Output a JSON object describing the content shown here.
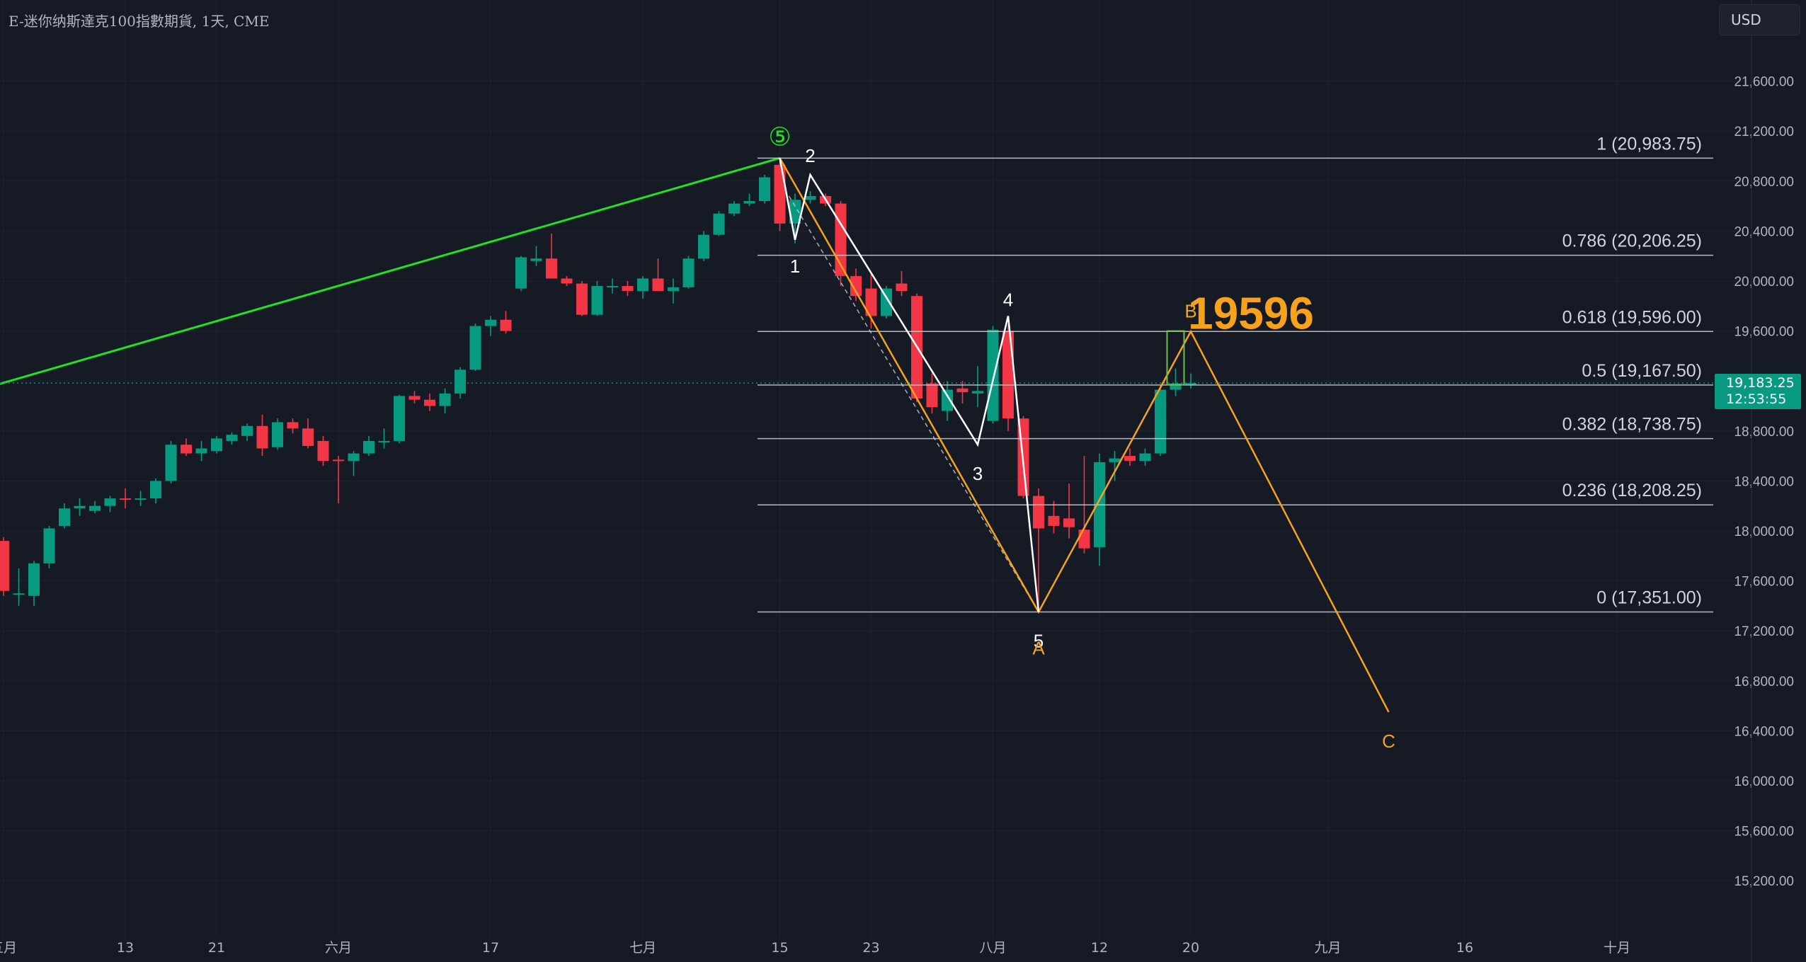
{
  "header": {
    "title": "E-迷你纳斯達克100指數期貨, 1天, CME",
    "currency_button": "USD"
  },
  "price_tag": {
    "price": "19,183.25",
    "countdown": "12:53:55"
  },
  "colors": {
    "background": "#161a25",
    "grid": "#1f2330",
    "up": "#089981",
    "down": "#f23645",
    "trendline": "#22e022",
    "abc_line": "#f7a21b",
    "impulse_line": "#ffffff",
    "fib_line": "#d1d4dc",
    "axis_text": "#b2b5be"
  },
  "chart_data": {
    "type": "candlestick",
    "title": "E-迷你纳斯達克100指數期貨, 1天, CME",
    "ylim": [
      14800,
      22400
    ],
    "y_ticks": [
      "15,200.00",
      "15,600.00",
      "16,000.00",
      "16,400.00",
      "16,800.00",
      "17,200.00",
      "17,600.00",
      "18,000.00",
      "18,400.00",
      "18,800.00",
      "19,200.00",
      "19,600.00",
      "20,000.00",
      "20,400.00",
      "20,800.00",
      "21,200.00",
      "21,600.00"
    ],
    "x_ticks": [
      {
        "label": "五月",
        "bar": 0
      },
      {
        "label": "13",
        "bar": 8
      },
      {
        "label": "21",
        "bar": 14
      },
      {
        "label": "六月",
        "bar": 22
      },
      {
        "label": "17",
        "bar": 32
      },
      {
        "label": "七月",
        "bar": 42
      },
      {
        "label": "15",
        "bar": 51
      },
      {
        "label": "23",
        "bar": 57
      },
      {
        "label": "八月",
        "bar": 65
      },
      {
        "label": "12",
        "bar": 72
      },
      {
        "label": "20",
        "bar": 78
      },
      {
        "label": "九月",
        "bar": 87
      },
      {
        "label": "16",
        "bar": 96
      },
      {
        "label": "十月",
        "bar": 106
      }
    ],
    "candles": [
      {
        "o": 17920,
        "h": 17950,
        "l": 17480,
        "c": 17520
      },
      {
        "o": 17500,
        "h": 17700,
        "l": 17400,
        "c": 17500
      },
      {
        "o": 17480,
        "h": 17760,
        "l": 17400,
        "c": 17740
      },
      {
        "o": 17740,
        "h": 18040,
        "l": 17700,
        "c": 18020
      },
      {
        "o": 18040,
        "h": 18220,
        "l": 18020,
        "c": 18180
      },
      {
        "o": 18180,
        "h": 18260,
        "l": 18120,
        "c": 18200
      },
      {
        "o": 18160,
        "h": 18240,
        "l": 18140,
        "c": 18200
      },
      {
        "o": 18200,
        "h": 18280,
        "l": 18150,
        "c": 18260
      },
      {
        "o": 18260,
        "h": 18340,
        "l": 18180,
        "c": 18250
      },
      {
        "o": 18250,
        "h": 18320,
        "l": 18200,
        "c": 18260
      },
      {
        "o": 18260,
        "h": 18420,
        "l": 18220,
        "c": 18400
      },
      {
        "o": 18400,
        "h": 18720,
        "l": 18380,
        "c": 18690
      },
      {
        "o": 18690,
        "h": 18740,
        "l": 18600,
        "c": 18620
      },
      {
        "o": 18620,
        "h": 18720,
        "l": 18560,
        "c": 18660
      },
      {
        "o": 18640,
        "h": 18760,
        "l": 18620,
        "c": 18740
      },
      {
        "o": 18720,
        "h": 18790,
        "l": 18690,
        "c": 18770
      },
      {
        "o": 18760,
        "h": 18860,
        "l": 18720,
        "c": 18840
      },
      {
        "o": 18840,
        "h": 18930,
        "l": 18600,
        "c": 18660
      },
      {
        "o": 18670,
        "h": 18900,
        "l": 18650,
        "c": 18870
      },
      {
        "o": 18870,
        "h": 18900,
        "l": 18780,
        "c": 18820
      },
      {
        "o": 18820,
        "h": 18900,
        "l": 18660,
        "c": 18680
      },
      {
        "o": 18720,
        "h": 18760,
        "l": 18520,
        "c": 18560
      },
      {
        "o": 18570,
        "h": 18600,
        "l": 18220,
        "c": 18560
      },
      {
        "o": 18560,
        "h": 18640,
        "l": 18440,
        "c": 18620
      },
      {
        "o": 18620,
        "h": 18760,
        "l": 18600,
        "c": 18720
      },
      {
        "o": 18720,
        "h": 18820,
        "l": 18660,
        "c": 18720
      },
      {
        "o": 18720,
        "h": 19090,
        "l": 18700,
        "c": 19080
      },
      {
        "o": 19080,
        "h": 19120,
        "l": 19020,
        "c": 19050
      },
      {
        "o": 19050,
        "h": 19100,
        "l": 18960,
        "c": 19000
      },
      {
        "o": 19000,
        "h": 19140,
        "l": 18940,
        "c": 19100
      },
      {
        "o": 19100,
        "h": 19310,
        "l": 19060,
        "c": 19290
      },
      {
        "o": 19290,
        "h": 19660,
        "l": 19280,
        "c": 19640
      },
      {
        "o": 19640,
        "h": 19720,
        "l": 19560,
        "c": 19690
      },
      {
        "o": 19690,
        "h": 19760,
        "l": 19580,
        "c": 19600
      },
      {
        "o": 19940,
        "h": 20200,
        "l": 19920,
        "c": 20190
      },
      {
        "o": 20160,
        "h": 20280,
        "l": 20120,
        "c": 20180
      },
      {
        "o": 20180,
        "h": 20380,
        "l": 20040,
        "c": 20020
      },
      {
        "o": 20020,
        "h": 20040,
        "l": 19960,
        "c": 19980
      },
      {
        "o": 19980,
        "h": 20000,
        "l": 19720,
        "c": 19730
      },
      {
        "o": 19730,
        "h": 20000,
        "l": 19720,
        "c": 19960
      },
      {
        "o": 19960,
        "h": 20020,
        "l": 19900,
        "c": 19960
      },
      {
        "o": 19960,
        "h": 20000,
        "l": 19880,
        "c": 19920
      },
      {
        "o": 19920,
        "h": 20040,
        "l": 19860,
        "c": 20020
      },
      {
        "o": 20020,
        "h": 20180,
        "l": 19940,
        "c": 19920
      },
      {
        "o": 19920,
        "h": 20020,
        "l": 19820,
        "c": 19950
      },
      {
        "o": 19950,
        "h": 20200,
        "l": 19940,
        "c": 20180
      },
      {
        "o": 20180,
        "h": 20400,
        "l": 20160,
        "c": 20370
      },
      {
        "o": 20370,
        "h": 20560,
        "l": 20360,
        "c": 20540
      },
      {
        "o": 20540,
        "h": 20640,
        "l": 20520,
        "c": 20620
      },
      {
        "o": 20620,
        "h": 20700,
        "l": 20600,
        "c": 20640
      },
      {
        "o": 20640,
        "h": 20850,
        "l": 20620,
        "c": 20830
      },
      {
        "o": 20930,
        "h": 20990,
        "l": 20400,
        "c": 20460
      },
      {
        "o": 20460,
        "h": 20700,
        "l": 20300,
        "c": 20650
      },
      {
        "o": 20650,
        "h": 20720,
        "l": 20620,
        "c": 20680
      },
      {
        "o": 20680,
        "h": 20700,
        "l": 20600,
        "c": 20620
      },
      {
        "o": 20620,
        "h": 20640,
        "l": 19960,
        "c": 20040
      },
      {
        "o": 20040,
        "h": 20100,
        "l": 19840,
        "c": 19880
      },
      {
        "o": 19940,
        "h": 20060,
        "l": 19620,
        "c": 19720
      },
      {
        "o": 19720,
        "h": 19960,
        "l": 19700,
        "c": 19940
      },
      {
        "o": 19980,
        "h": 20080,
        "l": 19880,
        "c": 19920
      },
      {
        "o": 19880,
        "h": 19900,
        "l": 19030,
        "c": 19060
      },
      {
        "o": 19180,
        "h": 19260,
        "l": 18940,
        "c": 18990
      },
      {
        "o": 18960,
        "h": 19200,
        "l": 18880,
        "c": 19130
      },
      {
        "o": 19140,
        "h": 19200,
        "l": 19020,
        "c": 19110
      },
      {
        "o": 19100,
        "h": 19320,
        "l": 18990,
        "c": 19120
      },
      {
        "o": 18880,
        "h": 19640,
        "l": 18860,
        "c": 19610
      },
      {
        "o": 19600,
        "h": 19650,
        "l": 18800,
        "c": 18900
      },
      {
        "o": 18900,
        "h": 18920,
        "l": 18260,
        "c": 18280
      },
      {
        "o": 18280,
        "h": 18340,
        "l": 17380,
        "c": 18020
      },
      {
        "o": 18120,
        "h": 18240,
        "l": 17980,
        "c": 18040
      },
      {
        "o": 18100,
        "h": 18380,
        "l": 17940,
        "c": 18030
      },
      {
        "o": 18010,
        "h": 18600,
        "l": 17820,
        "c": 17860
      },
      {
        "o": 17870,
        "h": 18620,
        "l": 17720,
        "c": 18550
      },
      {
        "o": 18550,
        "h": 18640,
        "l": 18400,
        "c": 18580
      },
      {
        "o": 18600,
        "h": 18660,
        "l": 18520,
        "c": 18560
      },
      {
        "o": 18560,
        "h": 18660,
        "l": 18520,
        "c": 18620
      },
      {
        "o": 18620,
        "h": 19160,
        "l": 18600,
        "c": 19130
      },
      {
        "o": 19130,
        "h": 19300,
        "l": 19080,
        "c": 19180
      },
      {
        "o": 19180,
        "h": 19260,
        "l": 19140,
        "c": 19183.25
      }
    ],
    "fib_levels": [
      {
        "level": "1",
        "price": 20983.75,
        "label": "1 (20,983.75)"
      },
      {
        "level": "0.786",
        "price": 20206.25,
        "label": "0.786 (20,206.25)"
      },
      {
        "level": "0.618",
        "price": 19596.0,
        "label": "0.618 (19,596.00)"
      },
      {
        "level": "0.5",
        "price": 19167.5,
        "label": "0.5 (19,167.50)"
      },
      {
        "level": "0.382",
        "price": 18738.75,
        "label": "0.382 (18,738.75)"
      },
      {
        "level": "0.236",
        "price": 18208.25,
        "label": "0.236 (18,208.25)"
      },
      {
        "level": "0",
        "price": 17351.0,
        "label": "0 (17,351.00)"
      }
    ],
    "current_price": 19183.25,
    "trendline": [
      {
        "bar": -3,
        "price": 19080
      },
      {
        "bar": 51,
        "price": 20983.75
      }
    ],
    "impulse_wave": [
      {
        "bar": 51,
        "price": 20983.75,
        "label": ""
      },
      {
        "bar": 52,
        "price": 20330,
        "label": "1"
      },
      {
        "bar": 53,
        "price": 20850,
        "label": "2"
      },
      {
        "bar": 64,
        "price": 18690,
        "label": "3"
      },
      {
        "bar": 66,
        "price": 19720,
        "label": "4"
      },
      {
        "bar": 68,
        "price": 17351,
        "label": "5"
      }
    ],
    "abc_wave": [
      {
        "bar": 51,
        "price": 20983.75,
        "label": ""
      },
      {
        "bar": 68,
        "price": 17351,
        "label": "A"
      },
      {
        "bar": 78,
        "price": 19596,
        "label": "B"
      },
      {
        "bar": 91,
        "price": 16550,
        "label": "C"
      }
    ],
    "wave5_marker": "⑤",
    "target_annotation": {
      "text": "19596",
      "price": 19596
    }
  }
}
